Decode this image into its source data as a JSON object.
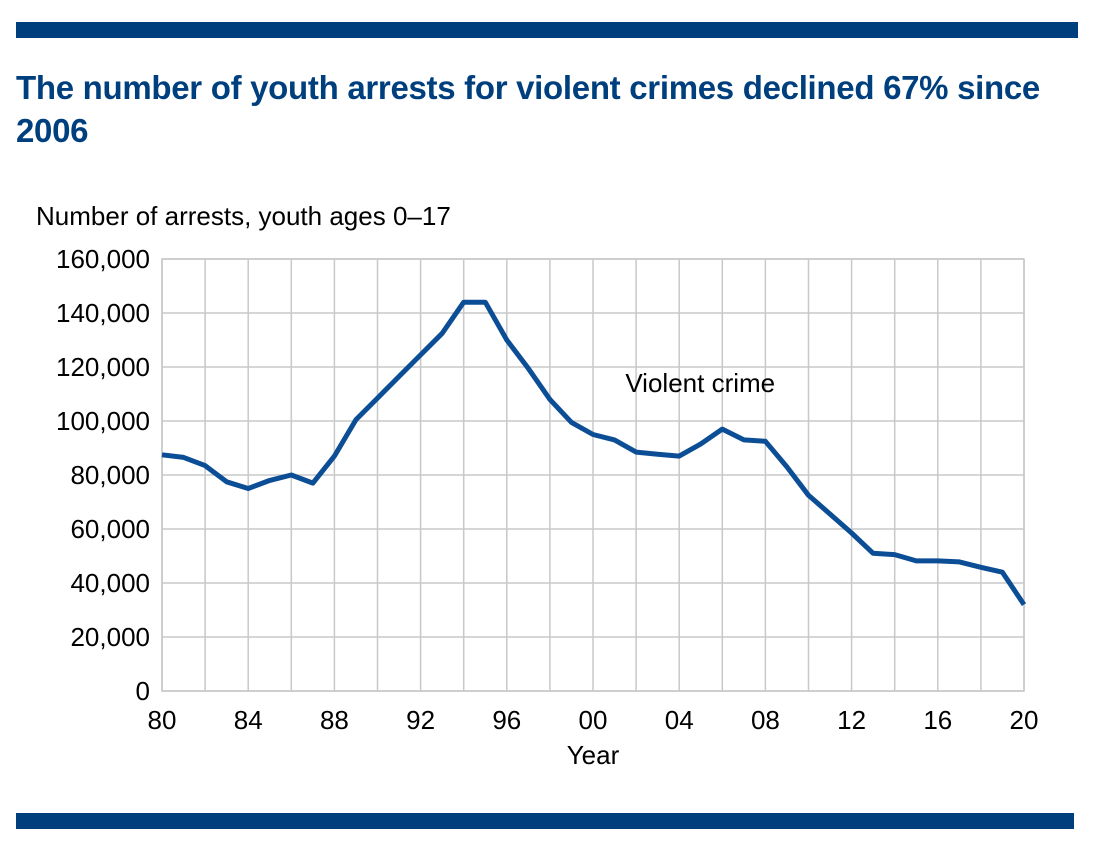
{
  "title": "The number of youth arrests for violent crimes declined 67% since 2006",
  "colors": {
    "accent": "#003f7d",
    "line": "#0c4e96",
    "grid": "#c8c8c8"
  },
  "chart_data": {
    "type": "line",
    "title": "The number of youth arrests for violent crimes declined 67% since 2006",
    "ylabel": "Number of arrests, youth ages 0–17",
    "xlabel": "Year",
    "xlim": [
      1980,
      2020
    ],
    "ylim": [
      0,
      160000
    ],
    "grid": true,
    "x_ticks": [
      1980,
      1984,
      1988,
      1992,
      1996,
      2000,
      2004,
      2008,
      2012,
      2016,
      2020
    ],
    "x_tick_labels": [
      "80",
      "84",
      "88",
      "92",
      "96",
      "00",
      "04",
      "08",
      "12",
      "16",
      "20"
    ],
    "y_ticks": [
      0,
      20000,
      40000,
      60000,
      80000,
      100000,
      120000,
      140000,
      160000
    ],
    "y_tick_labels": [
      "0",
      "20,000",
      "40,000",
      "60,000",
      "80,000",
      "100,000",
      "120,000",
      "140,000",
      "160,000"
    ],
    "series": [
      {
        "name": "Violent crime",
        "x": [
          1980,
          1981,
          1982,
          1983,
          1984,
          1985,
          1986,
          1987,
          1988,
          1989,
          1990,
          1991,
          1992,
          1993,
          1994,
          1995,
          1996,
          1997,
          1998,
          1999,
          2000,
          2001,
          2002,
          2003,
          2004,
          2005,
          2006,
          2007,
          2008,
          2009,
          2010,
          2011,
          2012,
          2013,
          2014,
          2015,
          2016,
          2017,
          2018,
          2019,
          2020
        ],
        "values": [
          87500,
          86500,
          83500,
          77500,
          75000,
          78000,
          80000,
          77000,
          87000,
          100500,
          108500,
          116500,
          124500,
          132500,
          144000,
          144000,
          130000,
          119500,
          108000,
          99500,
          95000,
          93000,
          88500,
          87700,
          87000,
          91500,
          97000,
          93000,
          92500,
          83000,
          72500,
          65500,
          58500,
          51000,
          50500,
          48200,
          48200,
          47800,
          45800,
          44000,
          32000
        ]
      }
    ],
    "annotations": [
      {
        "text": "Violent crime",
        "x": 2001.5,
        "y": 114000
      }
    ]
  }
}
